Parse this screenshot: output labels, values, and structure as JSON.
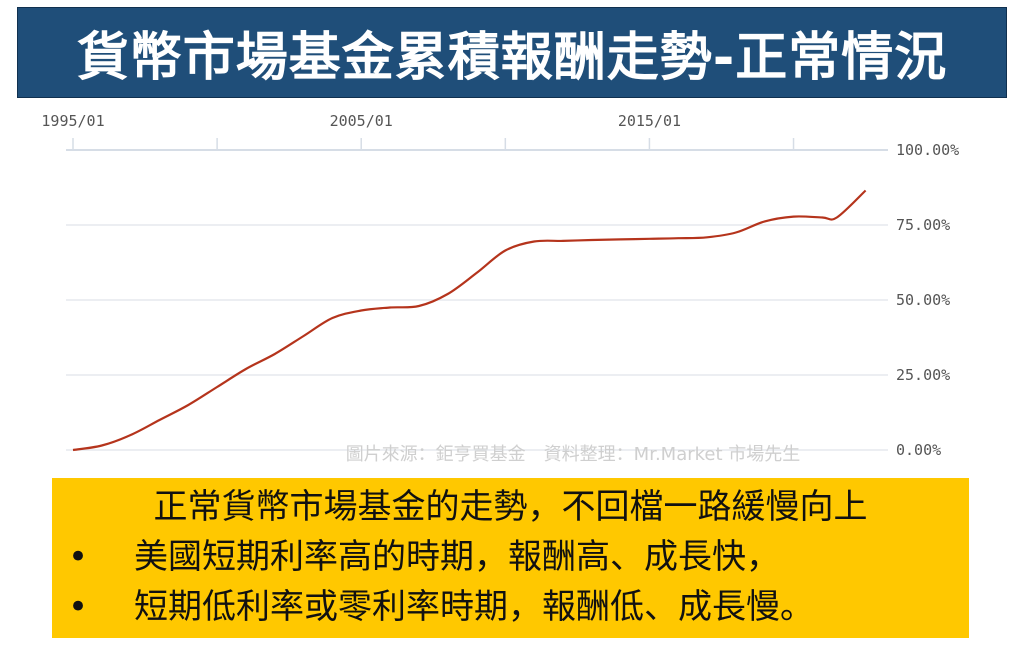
{
  "title": "貨幣市場基金累積報酬走勢-正常情況",
  "source_note": "圖片來源：鉅亨買基金　資料整理：Mr.Market 市場先生",
  "notes": {
    "headline": "正常貨幣市場基金的走勢，不回檔一路緩慢向上",
    "bullet_symbol": "•",
    "bullets": [
      "美國短期利率高的時期，報酬高、成長快，",
      "短期低利率或零利率時期，報酬低、成長慢。"
    ]
  },
  "colors": {
    "title_bg": "#1f4e79",
    "line": "#b5341c",
    "note_bg": "#ffc800",
    "grid": "#e6e9ee"
  },
  "chart_data": {
    "type": "line",
    "title": "",
    "xlabel": "",
    "ylabel": "",
    "x_tick_labels": [
      "1995/01",
      "2005/01",
      "2015/01"
    ],
    "x_tick_years": [
      1995,
      2005,
      2015
    ],
    "x_minor_tick_years": [
      1995,
      2000,
      2005,
      2010,
      2015,
      2020
    ],
    "y_tick_labels": [
      "100.00%",
      "75.00%",
      "50.00%",
      "25.00%",
      "0.00%"
    ],
    "y_ticks": [
      100,
      75,
      50,
      25,
      0
    ],
    "ylim": [
      0,
      100
    ],
    "xlim": [
      1995,
      2023
    ],
    "grid": true,
    "y_axis_side": "right",
    "x_axis_position": "top",
    "series": [
      {
        "x": [
          1995.0,
          1996.0,
          1997.0,
          1998.0,
          1999.0,
          2000.0,
          2001.0,
          2002.0,
          2003.0,
          2004.0,
          2005.0,
          2006.0,
          2007.0,
          2008.0,
          2009.0,
          2010.0,
          2011.0,
          2012.0,
          2013.0,
          2014.0,
          2015.0,
          2016.0,
          2017.0,
          2018.0,
          2019.0,
          2020.0,
          2021.0,
          2021.5,
          2022.5
        ],
        "y": [
          0,
          1.5,
          5,
          10,
          15,
          21,
          27,
          32,
          38,
          44,
          46.5,
          47.5,
          48,
          52,
          59,
          66.5,
          69.5,
          69.7,
          70,
          70.2,
          70.4,
          70.6,
          70.9,
          72.5,
          76.2,
          77.8,
          77.5,
          77.5,
          86.5
        ]
      }
    ]
  }
}
